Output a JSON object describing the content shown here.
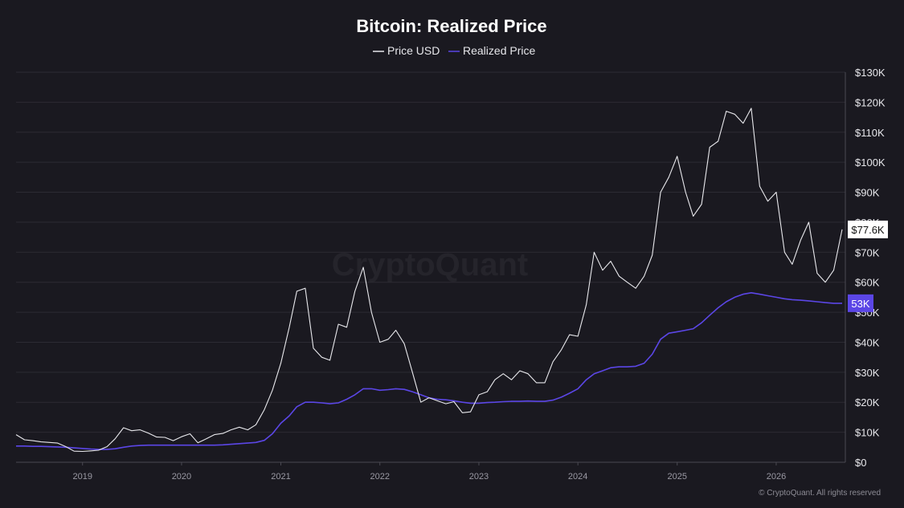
{
  "colors": {
    "background": "#1a1920",
    "price_line": "#e8e8ec",
    "realized_line": "#5b46e6",
    "price_callout_bg": "#ffffff",
    "realized_callout_bg": "#5b46e6"
  },
  "watermark": "CryptoQuant",
  "copyright": "© CryptoQuant. All rights reserved",
  "chart_data": {
    "type": "line",
    "title": "Bitcoin: Realized Price",
    "legend_placement": "top-center",
    "grid": true,
    "y_axis": {
      "position": "right",
      "ylim": [
        0,
        130000
      ],
      "tick_values": [
        0,
        10000,
        20000,
        30000,
        40000,
        50000,
        60000,
        70000,
        80000,
        90000,
        100000,
        110000,
        120000,
        130000
      ],
      "tick_labels": [
        "$0",
        "$10K",
        "$20K",
        "$30K",
        "$40K",
        "$50K",
        "$60K",
        "$70K",
        "$80K",
        "$90K",
        "$100K",
        "$110K",
        "$120K",
        "$130K"
      ]
    },
    "x_axis": {
      "xlim": [
        "2018-05-01",
        "2026-09-01"
      ],
      "tick_values": [
        "2019-01-01",
        "2020-01-01",
        "2021-01-01",
        "2022-01-01",
        "2023-01-01",
        "2024-01-01",
        "2025-01-01",
        "2026-01-01"
      ],
      "tick_labels": [
        "2019",
        "2020",
        "2021",
        "2022",
        "2023",
        "2024",
        "2025",
        "2026"
      ]
    },
    "series": [
      {
        "name": "Price USD",
        "last_label": "$77.6K",
        "x": [
          "2018-05",
          "2018-06",
          "2018-07",
          "2018-08",
          "2018-09",
          "2018-10",
          "2018-11",
          "2018-12",
          "2019-01",
          "2019-02",
          "2019-03",
          "2019-04",
          "2019-05",
          "2019-06",
          "2019-07",
          "2019-08",
          "2019-09",
          "2019-10",
          "2019-11",
          "2019-12",
          "2020-01",
          "2020-02",
          "2020-03",
          "2020-04",
          "2020-05",
          "2020-06",
          "2020-07",
          "2020-08",
          "2020-09",
          "2020-10",
          "2020-11",
          "2020-12",
          "2021-01",
          "2021-02",
          "2021-03",
          "2021-04",
          "2021-05",
          "2021-06",
          "2021-07",
          "2021-08",
          "2021-09",
          "2021-10",
          "2021-11",
          "2021-12",
          "2022-01",
          "2022-02",
          "2022-03",
          "2022-04",
          "2022-05",
          "2022-06",
          "2022-07",
          "2022-08",
          "2022-09",
          "2022-10",
          "2022-11",
          "2022-12",
          "2023-01",
          "2023-02",
          "2023-03",
          "2023-04",
          "2023-05",
          "2023-06",
          "2023-07",
          "2023-08",
          "2023-09",
          "2023-10",
          "2023-11",
          "2023-12",
          "2024-01",
          "2024-02",
          "2024-03",
          "2024-04",
          "2024-05",
          "2024-06",
          "2024-07",
          "2024-08",
          "2024-09",
          "2024-10",
          "2024-11",
          "2024-12",
          "2025-01",
          "2025-02",
          "2025-03",
          "2025-04",
          "2025-05",
          "2025-06",
          "2025-07",
          "2025-08",
          "2025-09",
          "2025-10",
          "2025-11",
          "2025-12",
          "2026-01",
          "2026-02",
          "2026-03",
          "2026-04",
          "2026-05",
          "2026-06",
          "2026-07",
          "2026-08",
          "2026-09"
        ],
        "values": [
          9200,
          7500,
          7200,
          6800,
          6600,
          6400,
          5200,
          3700,
          3600,
          3800,
          4000,
          5200,
          7800,
          11500,
          10500,
          10800,
          9700,
          8400,
          8300,
          7200,
          8500,
          9500,
          6500,
          7800,
          9200,
          9600,
          10800,
          11700,
          10800,
          12500,
          17500,
          24000,
          33000,
          45000,
          57000,
          58000,
          38000,
          35000,
          34000,
          46000,
          45000,
          57000,
          65000,
          50000,
          40000,
          41000,
          44000,
          39500,
          30000,
          20000,
          21500,
          20500,
          19500,
          20200,
          16500,
          16800,
          22500,
          23500,
          27500,
          29500,
          27500,
          30500,
          29500,
          26500,
          26500,
          33500,
          37500,
          42500,
          42000,
          52500,
          70000,
          64000,
          67000,
          62000,
          60000,
          58000,
          62000,
          69000,
          90000,
          95000,
          102000,
          90000,
          82000,
          86000,
          105000,
          107000,
          117000,
          116000,
          113000,
          118000,
          92000,
          87000,
          90000,
          70000,
          66000,
          74000,
          80000,
          63000,
          60000,
          64000,
          77600
        ]
      },
      {
        "name": "Realized Price",
        "last_label": "53K",
        "x": [
          "2018-05",
          "2018-06",
          "2018-07",
          "2018-08",
          "2018-09",
          "2018-10",
          "2018-11",
          "2018-12",
          "2019-01",
          "2019-02",
          "2019-03",
          "2019-04",
          "2019-05",
          "2019-06",
          "2019-07",
          "2019-08",
          "2019-09",
          "2019-10",
          "2019-11",
          "2019-12",
          "2020-01",
          "2020-02",
          "2020-03",
          "2020-04",
          "2020-05",
          "2020-06",
          "2020-07",
          "2020-08",
          "2020-09",
          "2020-10",
          "2020-11",
          "2020-12",
          "2021-01",
          "2021-02",
          "2021-03",
          "2021-04",
          "2021-05",
          "2021-06",
          "2021-07",
          "2021-08",
          "2021-09",
          "2021-10",
          "2021-11",
          "2021-12",
          "2022-01",
          "2022-02",
          "2022-03",
          "2022-04",
          "2022-05",
          "2022-06",
          "2022-07",
          "2022-08",
          "2022-09",
          "2022-10",
          "2022-11",
          "2022-12",
          "2023-01",
          "2023-02",
          "2023-03",
          "2023-04",
          "2023-05",
          "2023-06",
          "2023-07",
          "2023-08",
          "2023-09",
          "2023-10",
          "2023-11",
          "2023-12",
          "2024-01",
          "2024-02",
          "2024-03",
          "2024-04",
          "2024-05",
          "2024-06",
          "2024-07",
          "2024-08",
          "2024-09",
          "2024-10",
          "2024-11",
          "2024-12",
          "2025-01",
          "2025-02",
          "2025-03",
          "2025-04",
          "2025-05",
          "2025-06",
          "2025-07",
          "2025-08",
          "2025-09",
          "2025-10",
          "2025-11",
          "2025-12",
          "2026-01",
          "2026-02",
          "2026-03",
          "2026-04",
          "2026-05",
          "2026-06",
          "2026-07",
          "2026-08",
          "2026-09"
        ],
        "values": [
          5400,
          5400,
          5300,
          5300,
          5200,
          5100,
          5000,
          4800,
          4600,
          4400,
          4300,
          4300,
          4500,
          5000,
          5400,
          5600,
          5700,
          5700,
          5700,
          5700,
          5700,
          5700,
          5700,
          5700,
          5700,
          5800,
          6000,
          6200,
          6400,
          6600,
          7300,
          9500,
          13000,
          15500,
          18500,
          20000,
          20000,
          19800,
          19500,
          19800,
          21000,
          22500,
          24500,
          24500,
          24000,
          24200,
          24500,
          24300,
          23500,
          22500,
          21500,
          21000,
          20800,
          20500,
          20000,
          19700,
          19700,
          19900,
          20000,
          20200,
          20300,
          20300,
          20400,
          20300,
          20300,
          20700,
          21700,
          23000,
          24500,
          27500,
          29500,
          30500,
          31500,
          31800,
          31800,
          32000,
          33000,
          36000,
          41000,
          43000,
          43500,
          44000,
          44500,
          46500,
          49000,
          51500,
          53500,
          55000,
          56000,
          56500,
          56000,
          55500,
          55000,
          54500,
          54200,
          54000,
          53800,
          53500,
          53200,
          53000,
          53000
        ]
      }
    ]
  }
}
